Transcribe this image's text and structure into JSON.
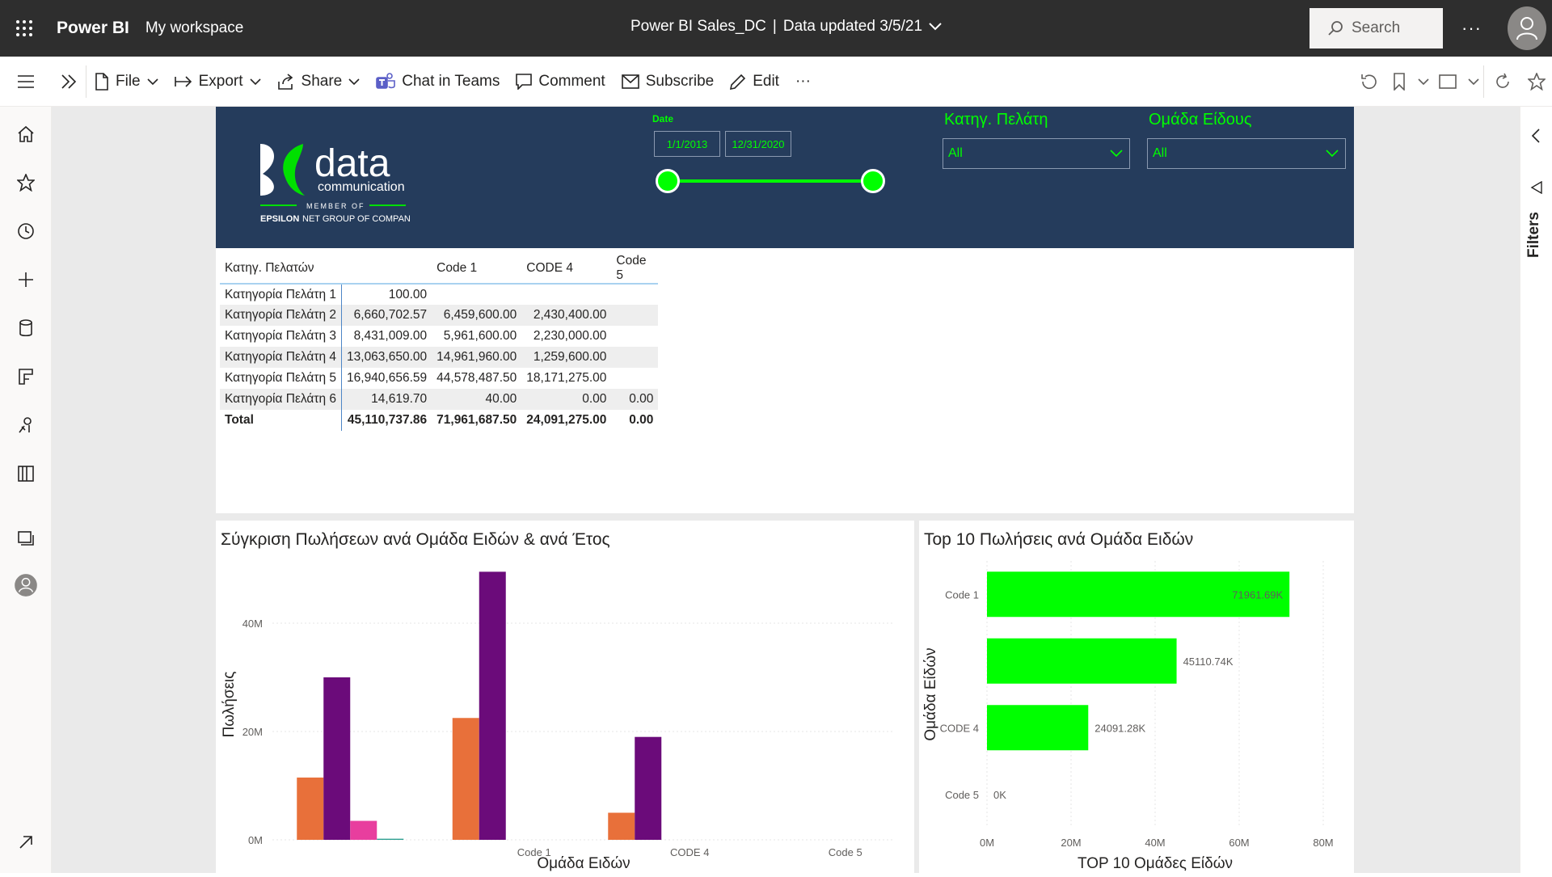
{
  "topbar": {
    "brand": "Power BI",
    "workspace": "My workspace",
    "report_title": "Power BI Sales_DC",
    "separator": "|",
    "data_updated": "Data updated 3/5/21",
    "search_placeholder": "Search",
    "more": "···"
  },
  "toolbar": {
    "file": "File",
    "export": "Export",
    "share": "Share",
    "chat": "Chat in Teams",
    "comment": "Comment",
    "subscribe": "Subscribe",
    "edit": "Edit",
    "more": "···"
  },
  "filters_pane": {
    "label": "Filters"
  },
  "header": {
    "logo_text": "data",
    "logo_sub": "communication",
    "logo_member": "MEMBER OF",
    "logo_group_bold": "EPSILON",
    "logo_group_rest": "NET GROUP OF COMPANIES",
    "date_label": "Date",
    "date_start": "1/1/2013",
    "date_end": "12/31/2020",
    "slicer1_label": "Κατηγ. Πελάτη",
    "slicer1_value": "All",
    "slicer2_label": "Ομάδα Είδους",
    "slicer2_value": "All"
  },
  "matrix": {
    "headers": [
      "Κατηγ. Πελατών",
      "",
      "Code 1",
      "CODE 4",
      "Code 5"
    ],
    "rows": [
      [
        "Κατηγορία Πελάτη 1",
        "100.00",
        "",
        "",
        ""
      ],
      [
        "Κατηγορία Πελάτη 2",
        "6,660,702.57",
        "6,459,600.00",
        "2,430,400.00",
        ""
      ],
      [
        "Κατηγορία Πελάτη 3",
        "8,431,009.00",
        "5,961,600.00",
        "2,230,000.00",
        ""
      ],
      [
        "Κατηγορία Πελάτη 4",
        "13,063,650.00",
        "14,961,960.00",
        "1,259,600.00",
        ""
      ],
      [
        "Κατηγορία Πελάτη 5",
        "16,940,656.59",
        "44,578,487.50",
        "18,171,275.00",
        ""
      ],
      [
        "Κατηγορία Πελάτη 6",
        "14,619.70",
        "40.00",
        "0.00",
        "0.00"
      ]
    ],
    "total": [
      "Total",
      "45,110,737.86",
      "71,961,687.50",
      "24,091,275.00",
      "0.00"
    ]
  },
  "chart_data": [
    {
      "type": "bar",
      "title": "Σύγκριση Πωλήσεων ανά Ομάδα Ειδών & ανά Έτος",
      "xlabel": "Ομάδα Ειδών",
      "ylabel": "Πωλήσεις",
      "categories": [
        "",
        "Code 1",
        "CODE 4",
        "Code 5"
      ],
      "y_ticks": [
        "0M",
        "20M",
        "40M"
      ],
      "ylim": [
        0,
        50
      ],
      "series": [
        {
          "color": "#e8703a",
          "values": [
            11.5,
            22.5,
            5,
            0
          ]
        },
        {
          "color": "#6b0b7a",
          "values": [
            30,
            49.5,
            19,
            0
          ]
        },
        {
          "color": "#e83e9e",
          "values": [
            3.5,
            0,
            0,
            0
          ]
        },
        {
          "color": "#2a9d8f",
          "values": [
            0.2,
            0,
            0,
            0
          ]
        }
      ]
    },
    {
      "type": "bar",
      "orientation": "horizontal",
      "title": "Top 10 Πωλήσεις ανά Ομάδα Ειδών",
      "xlabel": "TOP 10 Ομάδες Είδών",
      "ylabel": "Ομάδα Είδών",
      "categories": [
        "Code 1",
        "",
        "CODE 4",
        "Code 5"
      ],
      "values": [
        71961.69,
        45110.74,
        24091.28,
        0
      ],
      "data_labels": [
        "71961.69K",
        "45110.74K",
        "24091.28K",
        "0K"
      ],
      "x_ticks": [
        "0M",
        "20M",
        "40M",
        "60M",
        "80M"
      ],
      "xlim": [
        0,
        80000
      ],
      "color": "#00ff00"
    }
  ]
}
